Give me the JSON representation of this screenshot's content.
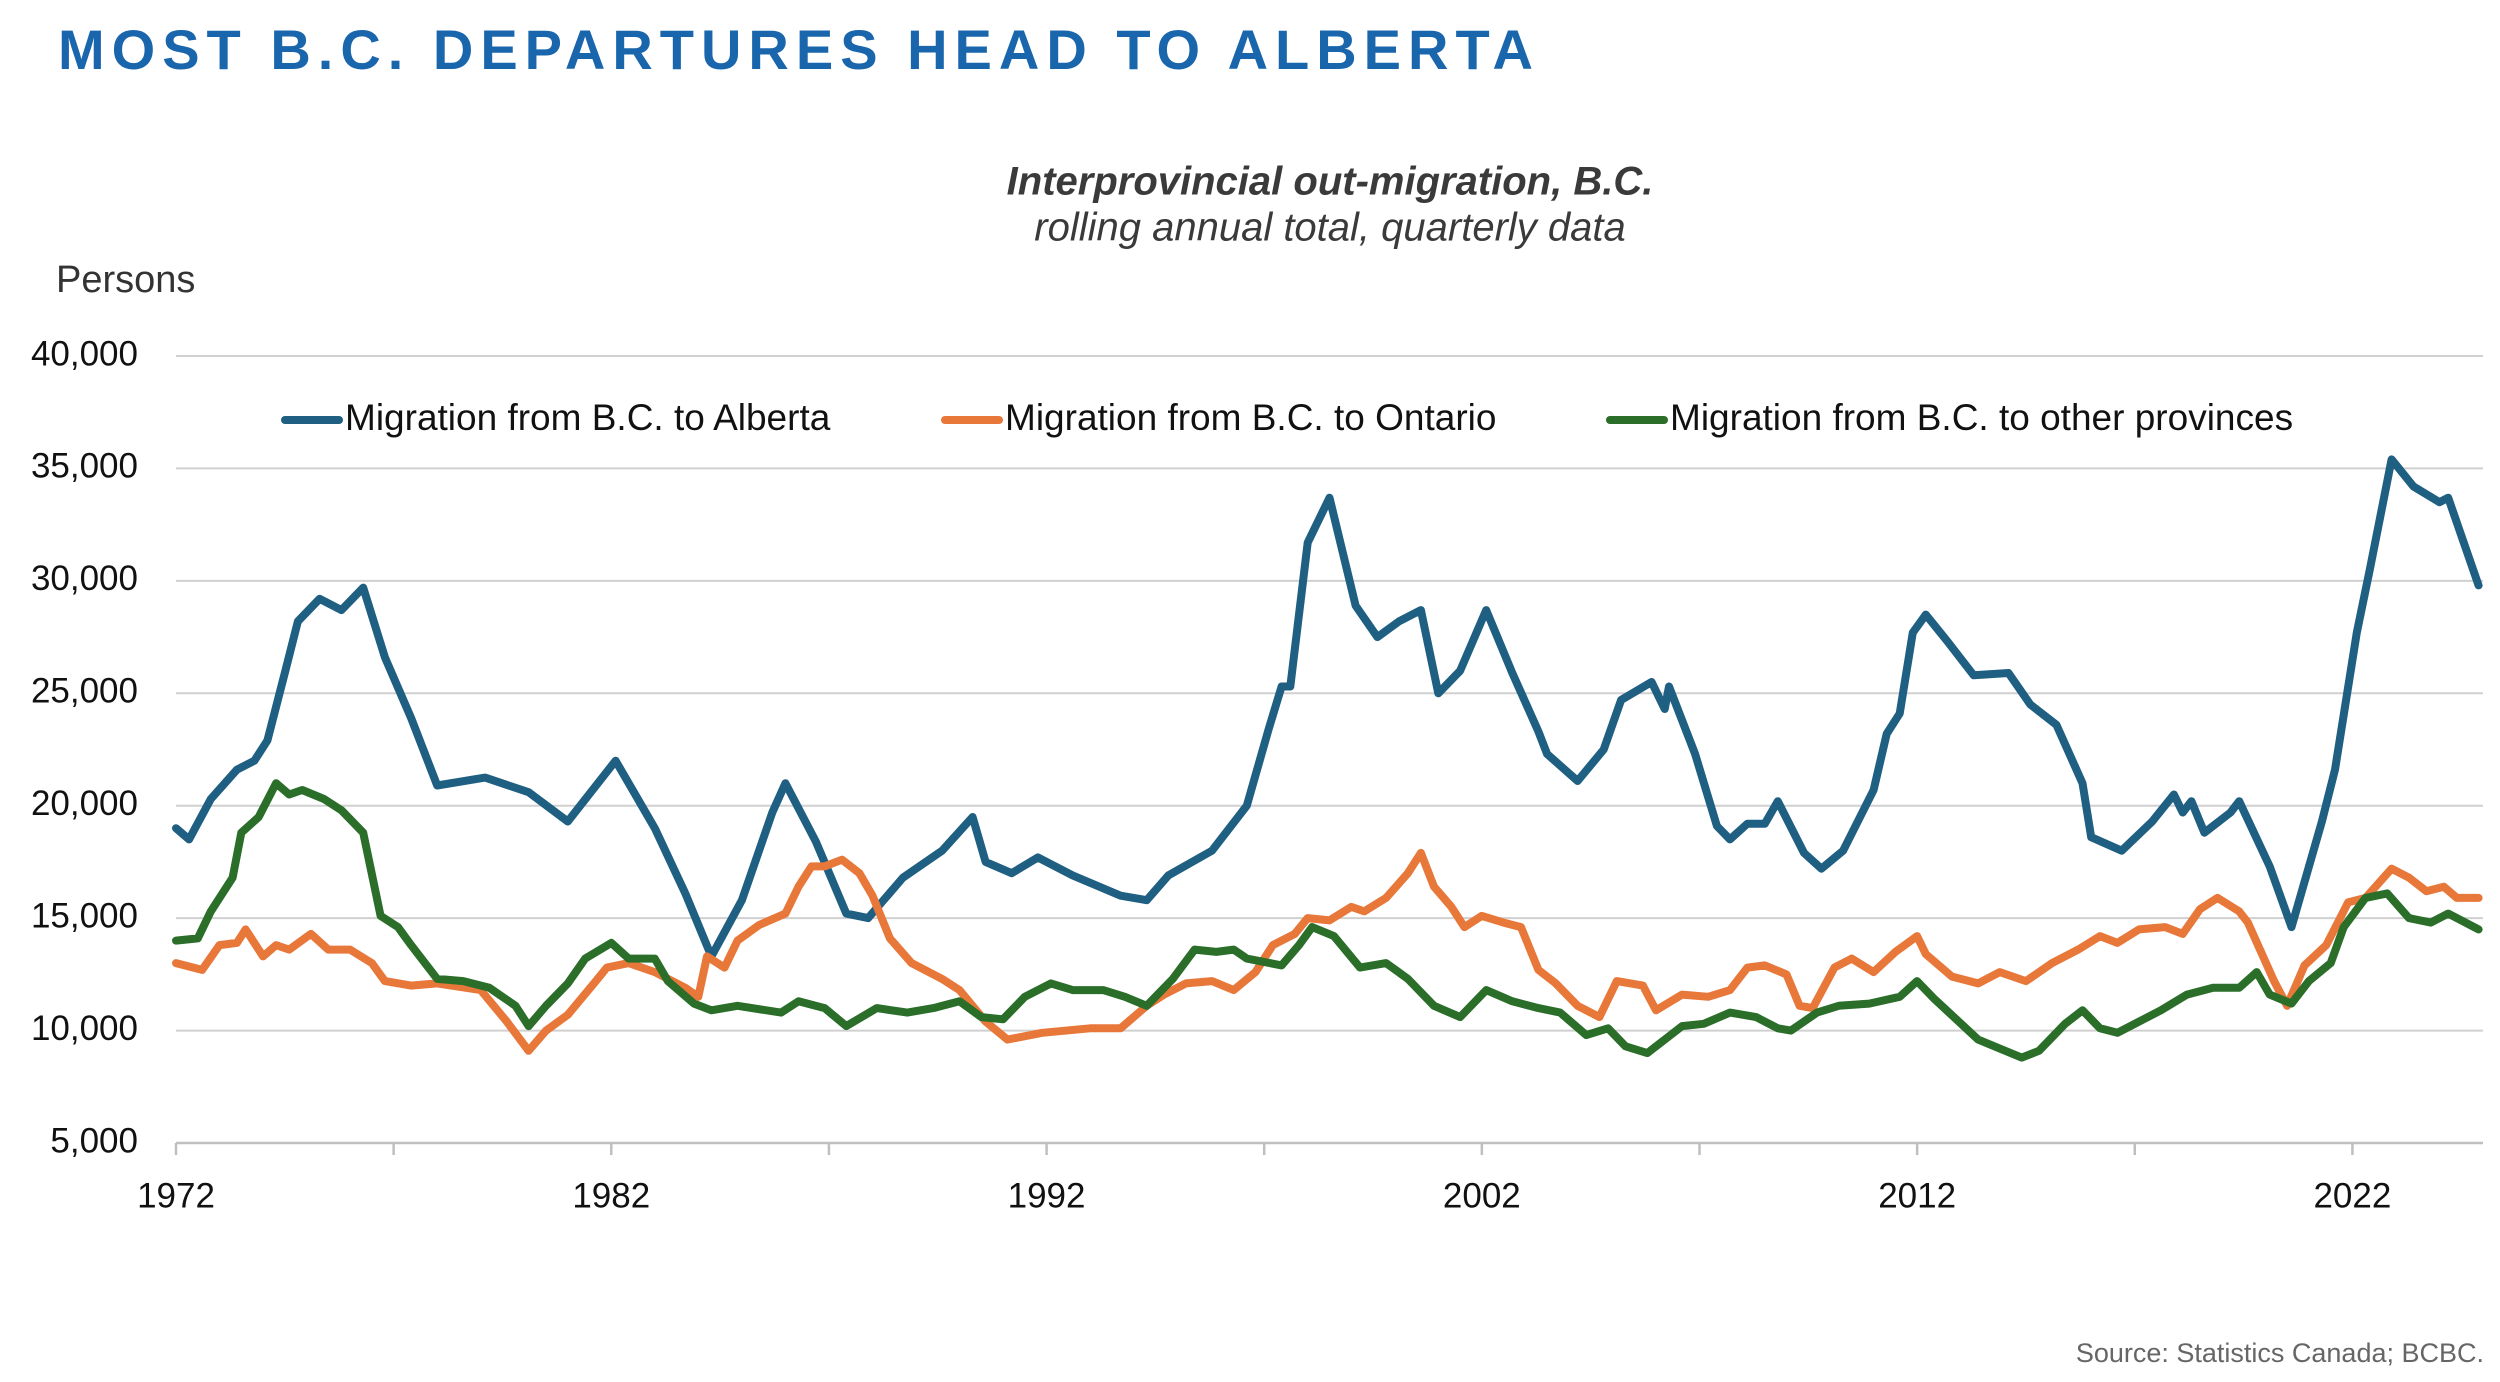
{
  "chart_data": {
    "type": "line",
    "title": "MOST B.C. DEPARTURES HEAD TO ALBERTA",
    "subtitle": [
      "Interprovincial out-migration, B.C.",
      "rolling annual total, quarterly data"
    ],
    "y_label": "Persons",
    "source": "Source: Statistics Canada; BCBC.",
    "xlim": [
      1972,
      2025
    ],
    "xticks": [
      1972,
      1982,
      1992,
      2002,
      2012,
      2022
    ],
    "xminor_ticks": [
      1977,
      1987,
      1997,
      2007,
      2017
    ],
    "ylim": [
      5000,
      40000
    ],
    "yticks": [
      {
        "value": 5000,
        "label": "5,000"
      },
      {
        "value": 10000,
        "label": "10,000"
      },
      {
        "value": 15000,
        "label": "15,000"
      },
      {
        "value": 20000,
        "label": "20,000"
      },
      {
        "value": 25000,
        "label": "25,000"
      },
      {
        "value": 30000,
        "label": "30,000"
      },
      {
        "value": 35000,
        "label": "35,000"
      },
      {
        "value": 40000,
        "label": "40,000"
      }
    ],
    "grid": true,
    "legend": "top",
    "series": [
      {
        "name": "Migration from B.C. to Alberta",
        "color": "#1f5f82",
        "x": [
          1972.0,
          1972.3,
          1972.8,
          1973.4,
          1973.8,
          1974.1,
          1974.5,
          1974.8,
          1975.3,
          1975.8,
          1976.3,
          1976.8,
          1977.4,
          1978.0,
          1979.1,
          1980.1,
          1981.0,
          1982.1,
          1983.0,
          1983.7,
          1984.3,
          1985.0,
          1985.7,
          1986.0,
          1986.7,
          1987.4,
          1987.9,
          1988.7,
          1989.6,
          1990.3,
          1990.6,
          1991.2,
          1991.8,
          1992.6,
          1993.7,
          1994.3,
          1994.8,
          1995.8,
          1996.6,
          1997.1,
          1997.4,
          1997.6,
          1998.0,
          1998.5,
          1999.1,
          1999.6,
          2000.1,
          2000.6,
          2001.0,
          2001.5,
          2002.1,
          2002.7,
          2003.3,
          2003.5,
          2004.2,
          2004.8,
          2005.2,
          2005.9,
          2006.2,
          2006.3,
          2006.9,
          2007.4,
          2007.7,
          2008.1,
          2008.5,
          2008.8,
          2009.4,
          2009.8,
          2010.3,
          2011.0,
          2011.3,
          2011.6,
          2011.9,
          2012.2,
          2012.7,
          2013.3,
          2014.1,
          2014.6,
          2015.2,
          2015.8,
          2016.0,
          2016.7,
          2017.4,
          2017.9,
          2018.1,
          2018.3,
          2018.6,
          2019.2,
          2019.4,
          2020.1,
          2020.6,
          2021.3,
          2021.6,
          2022.1,
          2022.4,
          2022.9,
          2023.4,
          2024.0,
          2024.2,
          2024.9
        ],
        "values": [
          19000,
          18500,
          20300,
          21600,
          22000,
          22900,
          25900,
          28200,
          29200,
          28700,
          29700,
          26600,
          23900,
          20900,
          21250,
          20600,
          19300,
          22000,
          19000,
          16100,
          13300,
          15800,
          19700,
          21000,
          18400,
          15200,
          15000,
          16800,
          18000,
          19500,
          17500,
          17000,
          17700,
          16900,
          16000,
          15800,
          16900,
          18000,
          20000,
          23400,
          25300,
          25300,
          31700,
          33700,
          28900,
          27500,
          28200,
          28700,
          25000,
          26000,
          28700,
          25900,
          23300,
          22300,
          21100,
          22500,
          24700,
          25500,
          24300,
          25300,
          22300,
          19100,
          18500,
          19200,
          19200,
          20200,
          17900,
          17200,
          18000,
          20700,
          23200,
          24100,
          27700,
          28500,
          27300,
          25800,
          25900,
          24500,
          23600,
          21000,
          18600,
          18000,
          19300,
          20500,
          19700,
          20200,
          18800,
          19700,
          20200,
          17300,
          14600,
          19300,
          21600,
          27700,
          30500,
          35400,
          34200,
          33500,
          33700,
          29800
        ]
      },
      {
        "name": "Migration from B.C. to Ontario",
        "color": "#e8773a",
        "x": [
          1972.0,
          1972.6,
          1973.0,
          1973.4,
          1973.6,
          1974.0,
          1974.3,
          1974.6,
          1975.1,
          1975.5,
          1976.0,
          1976.5,
          1976.8,
          1977.4,
          1978.0,
          1979.0,
          1979.6,
          1980.1,
          1980.5,
          1981.0,
          1981.6,
          1981.9,
          1982.4,
          1983.0,
          1983.7,
          1984.0,
          1984.2,
          1984.6,
          1984.9,
          1985.4,
          1986.0,
          1986.3,
          1986.6,
          1986.9,
          1987.3,
          1987.7,
          1988.0,
          1988.4,
          1988.9,
          1989.6,
          1990.0,
          1990.6,
          1991.1,
          1991.9,
          1993.0,
          1993.7,
          1994.3,
          1994.7,
          1995.2,
          1995.8,
          1996.3,
          1996.8,
          1997.2,
          1997.7,
          1998.0,
          1998.5,
          1999.0,
          1999.3,
          1999.8,
          2000.3,
          2000.6,
          2000.9,
          2001.3,
          2001.6,
          2002.0,
          2002.5,
          2002.9,
          2003.3,
          2003.7,
          2004.2,
          2004.7,
          2005.1,
          2005.7,
          2006.0,
          2006.6,
          2007.2,
          2007.7,
          2008.1,
          2008.5,
          2009.0,
          2009.3,
          2009.6,
          2010.1,
          2010.5,
          2011.0,
          2011.5,
          2012.0,
          2012.2,
          2012.8,
          2013.4,
          2013.9,
          2014.5,
          2015.1,
          2015.7,
          2016.2,
          2016.6,
          2017.1,
          2017.7,
          2018.1,
          2018.5,
          2018.9,
          2019.4,
          2019.6,
          2019.9,
          2020.2,
          2020.5,
          2020.9,
          2021.4,
          2021.9,
          2022.3,
          2022.9,
          2023.3,
          2023.7,
          2024.1,
          2024.4,
          2024.9
        ],
        "values": [
          13000,
          12700,
          13800,
          13900,
          14500,
          13300,
          13800,
          13600,
          14300,
          13600,
          13600,
          13000,
          12200,
          12000,
          12100,
          11800,
          10400,
          9100,
          10000,
          10700,
          12100,
          12800,
          13000,
          12600,
          11900,
          11500,
          13300,
          12800,
          14000,
          14700,
          15200,
          16400,
          17300,
          17300,
          17600,
          17000,
          16000,
          14100,
          13000,
          12300,
          11800,
          10400,
          9600,
          9900,
          10100,
          10100,
          11100,
          11600,
          12100,
          12200,
          11800,
          12600,
          13800,
          14300,
          15000,
          14900,
          15500,
          15300,
          15900,
          17000,
          17900,
          16400,
          15500,
          14600,
          15100,
          14800,
          14600,
          12700,
          12100,
          11100,
          10600,
          12200,
          12000,
          10900,
          11600,
          11500,
          11800,
          12800,
          12900,
          12500,
          11100,
          11000,
          12800,
          13200,
          12600,
          13500,
          14200,
          13400,
          12400,
          12100,
          12600,
          12200,
          13000,
          13600,
          14200,
          13900,
          14500,
          14600,
          14300,
          15400,
          15900,
          15300,
          14800,
          13500,
          12200,
          11100,
          12900,
          13800,
          15700,
          15900,
          17200,
          16800,
          16200,
          16400,
          15900,
          15900
        ]
      },
      {
        "name": "Migration from B.C. to other provinces",
        "color": "#2a6e2a",
        "x": [
          1972.0,
          1972.5,
          1972.8,
          1973.3,
          1973.5,
          1973.9,
          1974.3,
          1974.6,
          1974.9,
          1975.4,
          1975.8,
          1976.3,
          1976.7,
          1977.1,
          1977.4,
          1978.0,
          1978.6,
          1979.2,
          1979.8,
          1980.1,
          1980.5,
          1981.0,
          1981.4,
          1982.0,
          1982.4,
          1983.0,
          1983.3,
          1983.9,
          1984.3,
          1984.9,
          1985.9,
          1986.3,
          1986.9,
          1987.4,
          1988.1,
          1988.8,
          1989.4,
          1990.0,
          1990.5,
          1991.0,
          1991.5,
          1992.1,
          1992.6,
          1993.3,
          1993.8,
          1994.3,
          1994.9,
          1995.4,
          1995.9,
          1996.3,
          1996.6,
          1997.4,
          1997.8,
          1998.1,
          1998.6,
          1999.2,
          1999.8,
          2000.3,
          2000.9,
          2001.5,
          2002.1,
          2002.7,
          2003.3,
          2003.8,
          2004.4,
          2004.9,
          2005.3,
          2005.8,
          2006.2,
          2006.6,
          2007.1,
          2007.7,
          2008.3,
          2008.8,
          2009.1,
          2009.7,
          2010.2,
          2010.9,
          2011.6,
          2012.0,
          2012.4,
          2012.9,
          2013.4,
          2013.9,
          2014.4,
          2014.8,
          2015.4,
          2015.8,
          2016.2,
          2016.6,
          2017.1,
          2017.6,
          2018.2,
          2018.8,
          2019.4,
          2019.8,
          2020.1,
          2020.6,
          2021.0,
          2021.5,
          2021.8,
          2022.3,
          2022.8,
          2023.3,
          2023.8,
          2024.2,
          2024.9
        ],
        "values": [
          14000,
          14100,
          15300,
          16800,
          18800,
          19500,
          21000,
          20500,
          20700,
          20300,
          19800,
          18800,
          15100,
          14600,
          13800,
          12300,
          12200,
          11900,
          11100,
          10200,
          11100,
          12100,
          13200,
          13900,
          13200,
          13200,
          12200,
          11200,
          10900,
          11100,
          10800,
          11300,
          11000,
          10200,
          11000,
          10800,
          11000,
          11300,
          10600,
          10500,
          11500,
          12100,
          11800,
          11800,
          11500,
          11100,
          12300,
          13600,
          13500,
          13600,
          13200,
          12900,
          13800,
          14600,
          14200,
          12800,
          13000,
          12300,
          11100,
          10600,
          11800,
          11300,
          11000,
          10800,
          9800,
          10100,
          9300,
          9000,
          9600,
          10200,
          10300,
          10800,
          10600,
          10100,
          10000,
          10800,
          11100,
          11200,
          11500,
          12200,
          11400,
          10500,
          9600,
          9200,
          8800,
          9100,
          10300,
          10900,
          10100,
          9900,
          10400,
          10900,
          11600,
          11900,
          11900,
          12600,
          11600,
          11200,
          12200,
          13000,
          14600,
          15900,
          16100,
          15000,
          14800,
          15200,
          14500
        ]
      }
    ]
  }
}
